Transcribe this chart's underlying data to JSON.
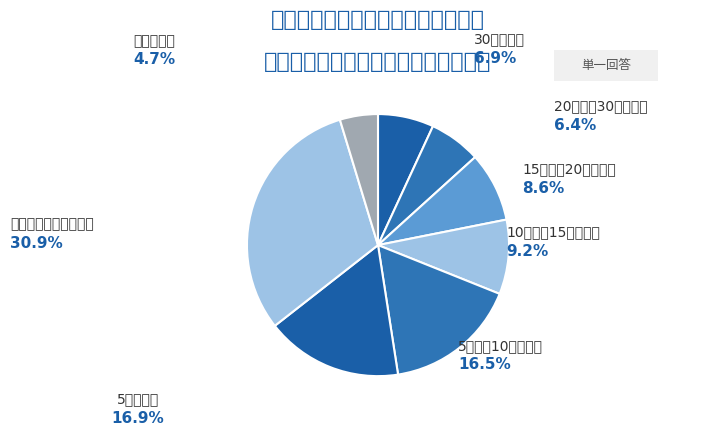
{
  "title_line1": "年末調整の時期は通常時に比べて、",
  "title_line2": "どのくらい残業時間が増加しますか。",
  "badge_text": "単一回答",
  "background_color": "#ffffff",
  "title_color": "#1a5fa8",
  "slices": [
    {
      "label": "30時間以上",
      "pct": 6.9,
      "color": "#1a5fa8"
    },
    {
      "label": "20時間〜30時間未満",
      "pct": 6.4,
      "color": "#2e75b6"
    },
    {
      "label": "15時間〜20時間未満",
      "pct": 8.6,
      "color": "#5b9bd5"
    },
    {
      "label": "10時間〜15時間未満",
      "pct": 9.2,
      "color": "#9dc3e6"
    },
    {
      "label": "5時間〜10時間未満",
      "pct": 16.5,
      "color": "#2e75b6"
    },
    {
      "label": "5時間未満",
      "pct": 16.9,
      "color": "#1a5fa8"
    },
    {
      "label": "残業は発生していない",
      "pct": 30.9,
      "color": "#9dc3e6"
    },
    {
      "label": "わからない",
      "pct": 4.7,
      "color": "#a0a8b0"
    }
  ],
  "label_color": "#1a5fa8",
  "pct_color": "#1a5fa8",
  "label_fontsize": 10,
  "pct_fontsize": 11
}
